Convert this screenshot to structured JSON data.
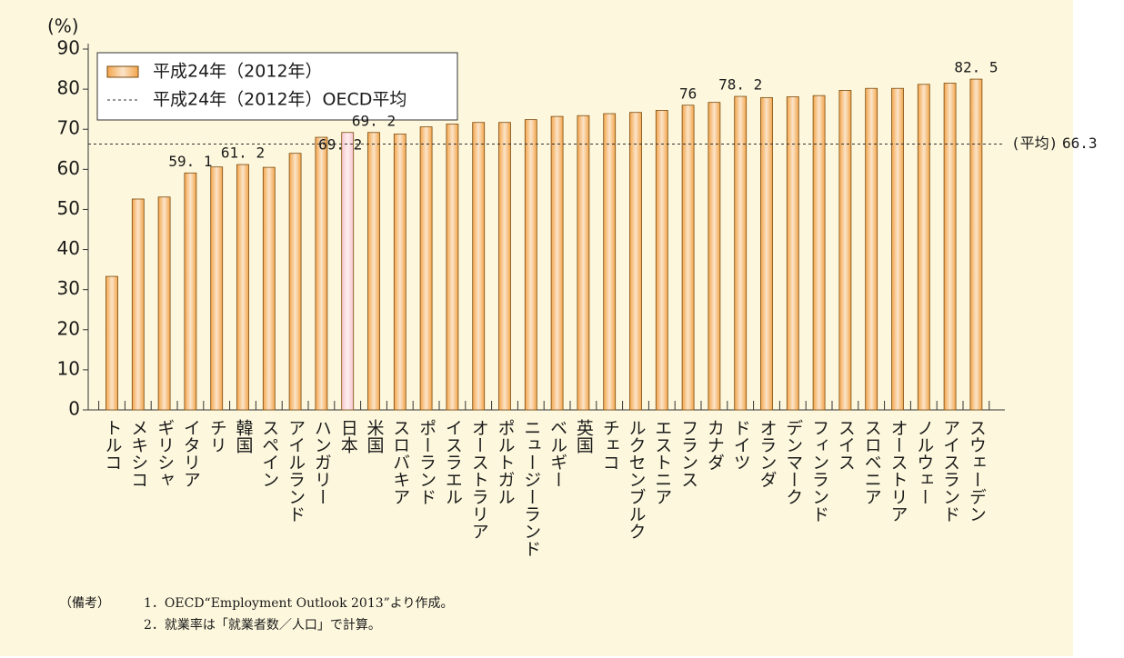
{
  "chart_data": {
    "type": "bar",
    "y_unit": "(%)",
    "categories": [
      "トルコ",
      "メキシコ",
      "ギリシャ",
      "イタリア",
      "チリ",
      "韓国",
      "スペイン",
      "アイルランド",
      "ハンガリー",
      "日本",
      "米国",
      "スロバキア",
      "ポーランド",
      "イスラエル",
      "オーストラリア",
      "ポルトガル",
      "ニュージーランド",
      "ベルギー",
      "英国",
      "チェコ",
      "ルクセンブルク",
      "エストニア",
      "フランス",
      "カナダ",
      "ドイツ",
      "オランダ",
      "デンマーク",
      "フィンランド",
      "スイス",
      "スロベニア",
      "オーストリア",
      "ノルウェー",
      "アイスランド",
      "スウェーデン"
    ],
    "series": [
      {
        "name": "平成24年（2012年）",
        "values": [
          33.3,
          52.6,
          53.1,
          59.1,
          60.6,
          61.2,
          60.5,
          64.0,
          68.0,
          69.2,
          69.2,
          68.8,
          70.6,
          71.3,
          71.7,
          71.7,
          72.4,
          73.2,
          73.4,
          73.9,
          74.2,
          74.7,
          76,
          76.7,
          78.2,
          77.9,
          78.1,
          78.4,
          79.7,
          80.2,
          80.2,
          81.2,
          81.5,
          82.5
        ],
        "value_labels": [
          null,
          null,
          null,
          "59. 1",
          null,
          "61. 2",
          null,
          null,
          null,
          "69. 2",
          "69. 2",
          null,
          null,
          null,
          null,
          null,
          null,
          null,
          null,
          null,
          null,
          null,
          "76",
          null,
          "78. 2",
          null,
          null,
          null,
          null,
          null,
          null,
          null,
          null,
          "82. 5"
        ],
        "colors": [
          "#f3a54a",
          "#f3a54a",
          "#f3a54a",
          "#f3a54a",
          "#f3a54a",
          "#f3a54a",
          "#f3a54a",
          "#f3a54a",
          "#f3a54a",
          "#f7c6cc",
          "#f3a54a",
          "#f3a54a",
          "#f3a54a",
          "#f3a54a",
          "#f3a54a",
          "#f3a54a",
          "#f3a54a",
          "#f3a54a",
          "#f3a54a",
          "#f3a54a",
          "#f3a54a",
          "#f3a54a",
          "#f3a54a",
          "#f3a54a",
          "#f3a54a",
          "#f3a54a",
          "#f3a54a",
          "#f3a54a",
          "#f3a54a",
          "#f3a54a",
          "#f3a54a",
          "#f3a54a",
          "#f3a54a",
          "#f3a54a"
        ]
      }
    ],
    "mean": {
      "name": "平成24年（2012年）OECD平均",
      "label": "(平均)",
      "value": 66.3
    },
    "ylim": [
      0,
      90
    ],
    "yticks": [
      0,
      10,
      20,
      30,
      40,
      50,
      60,
      70,
      80,
      90
    ],
    "notes": {
      "heading": "（備考）",
      "items": [
        "1．OECD“Employment Outlook 2013”より作成。",
        "2．就業率は「就業者数／人口」で計算。"
      ]
    }
  }
}
